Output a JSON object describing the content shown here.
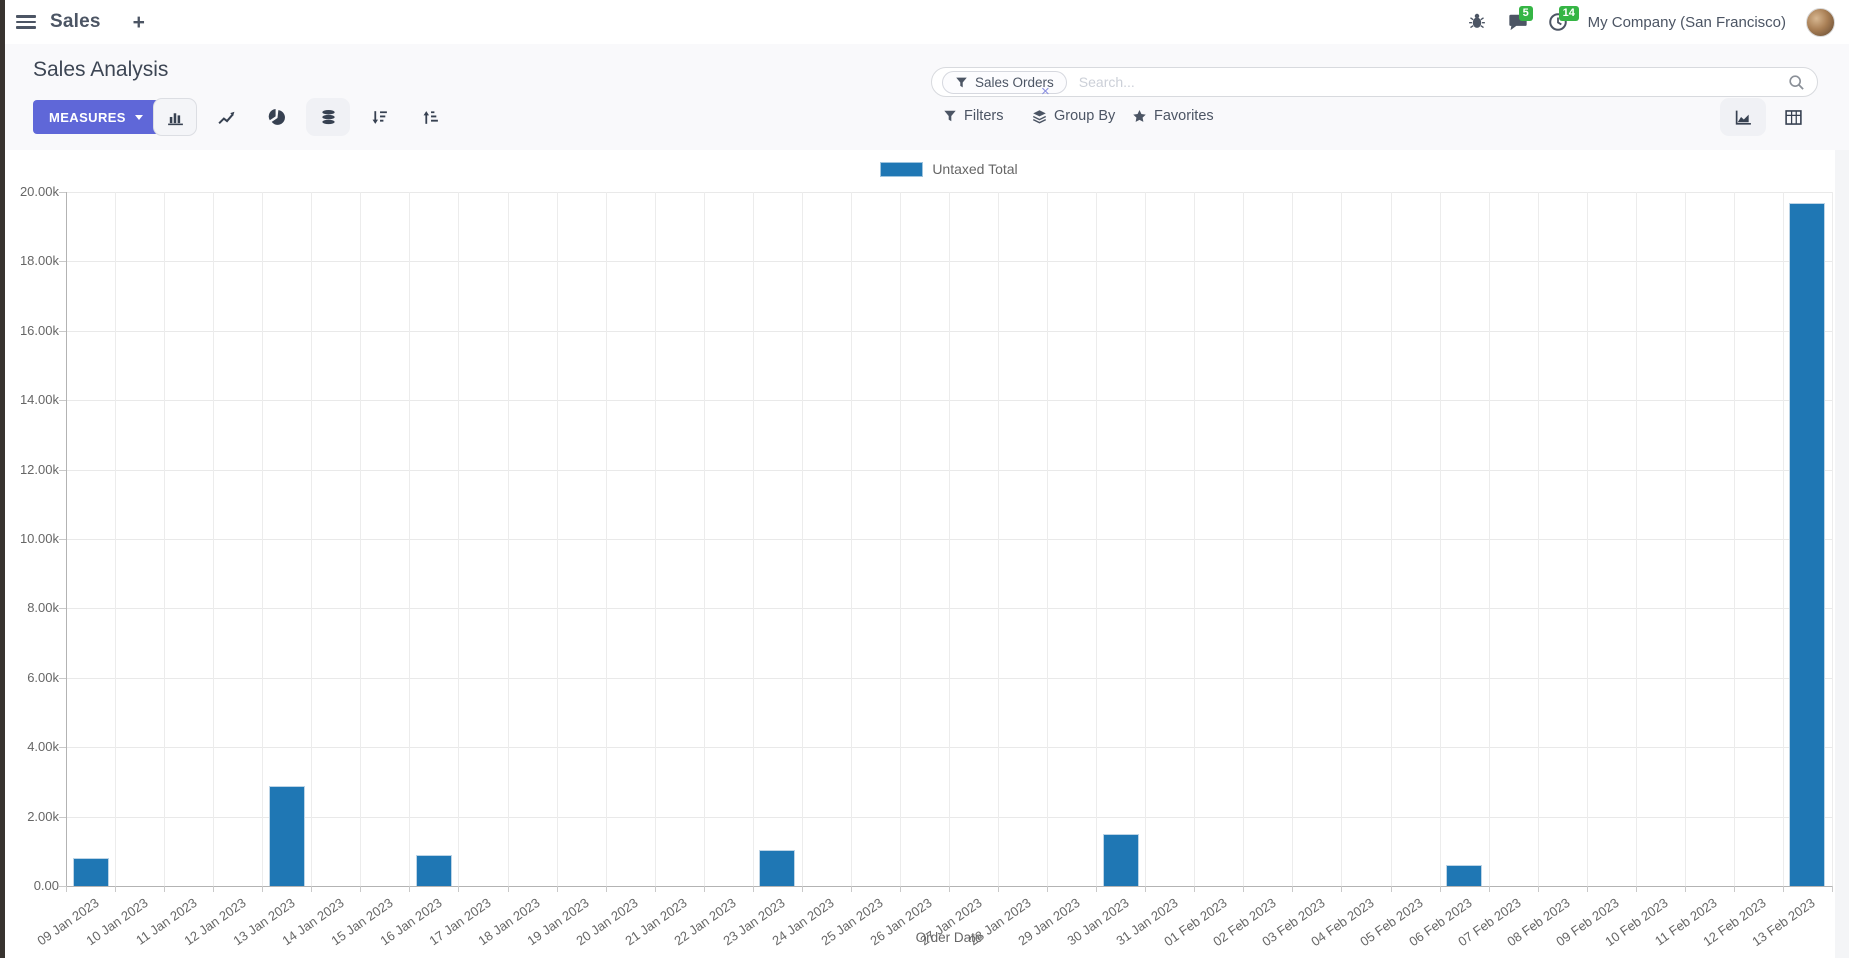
{
  "navbar": {
    "app_name": "Sales",
    "plus_label": "+",
    "messages_badge": "5",
    "activities_badge": "14",
    "company": "My Company (San Francisco)"
  },
  "control_panel": {
    "title": "Sales Analysis",
    "measures_label": "MEASURES",
    "search": {
      "facet": "Sales Orders",
      "facet_remove": "×",
      "placeholder": "Search..."
    },
    "filters_label": "Filters",
    "group_by_label": "Group By",
    "favorites_label": "Favorites"
  },
  "chart_data": {
    "type": "bar",
    "title": "",
    "xlabel": "Order Date",
    "ylabel": "",
    "ylim": [
      0,
      20000
    ],
    "grid": true,
    "legend_position": "top",
    "legend": "Untaxed Total",
    "bar_color": "#1f77b4",
    "y_ticks": [
      "20.00k",
      "18.00k",
      "16.00k",
      "14.00k",
      "12.00k",
      "10.00k",
      "8.00k",
      "6.00k",
      "4.00k",
      "2.00k",
      "0.00"
    ],
    "categories": [
      "09 Jan 2023",
      "10 Jan 2023",
      "11 Jan 2023",
      "12 Jan 2023",
      "13 Jan 2023",
      "14 Jan 2023",
      "15 Jan 2023",
      "16 Jan 2023",
      "17 Jan 2023",
      "18 Jan 2023",
      "19 Jan 2023",
      "20 Jan 2023",
      "21 Jan 2023",
      "22 Jan 2023",
      "23 Jan 2023",
      "24 Jan 2023",
      "25 Jan 2023",
      "26 Jan 2023",
      "27 Jan 2023",
      "28 Jan 2023",
      "29 Jan 2023",
      "30 Jan 2023",
      "31 Jan 2023",
      "01 Feb 2023",
      "02 Feb 2023",
      "03 Feb 2023",
      "04 Feb 2023",
      "05 Feb 2023",
      "06 Feb 2023",
      "07 Feb 2023",
      "08 Feb 2023",
      "09 Feb 2023",
      "10 Feb 2023",
      "11 Feb 2023",
      "12 Feb 2023",
      "13 Feb 2023"
    ],
    "values": [
      820,
      0,
      0,
      0,
      2890,
      0,
      0,
      890,
      0,
      0,
      0,
      0,
      0,
      0,
      1030,
      0,
      0,
      0,
      0,
      0,
      0,
      1490,
      0,
      0,
      0,
      0,
      0,
      0,
      600,
      0,
      0,
      0,
      0,
      0,
      0,
      19680
    ]
  },
  "colors": {
    "primary": "#5f67d8",
    "badge_green": "#35b545",
    "bar": "#1f77b4"
  }
}
